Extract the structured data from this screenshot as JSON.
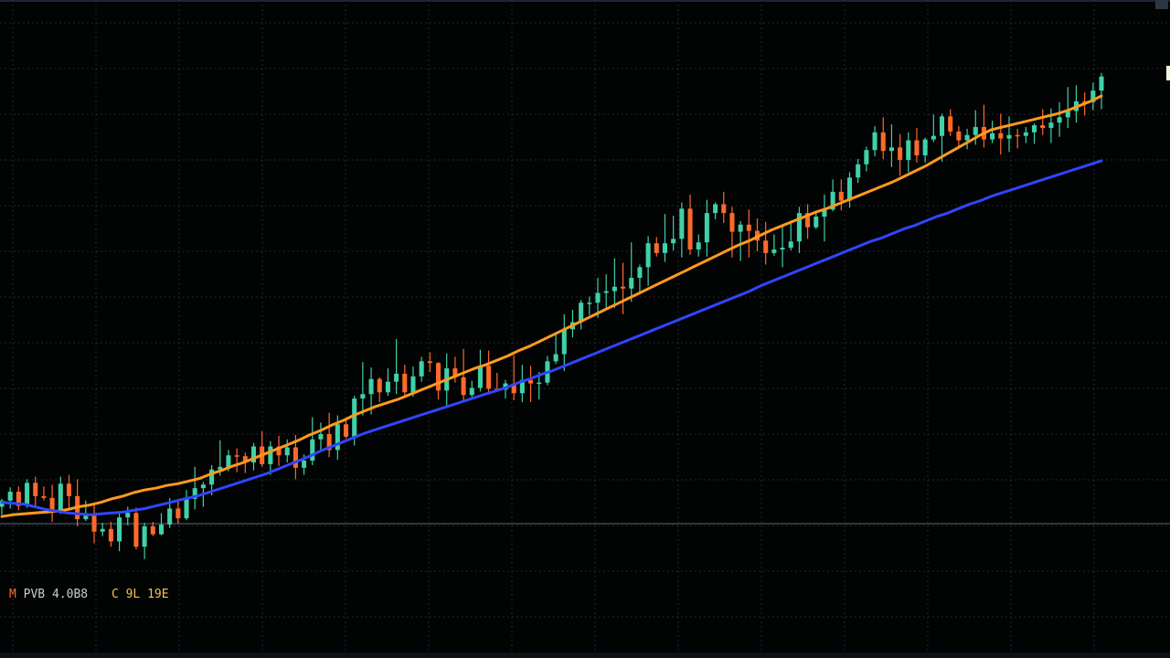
{
  "chart_data": {
    "type": "candlestick",
    "background": "#020303",
    "grid": true,
    "grid_color": "#1f2a33",
    "baseline_color": "#5a6670",
    "up_color": "#3fd1a8",
    "down_color": "#ff6a2a",
    "candles": [
      [
        3.03,
        3.12,
        2.94,
        3.1
      ],
      [
        3.1,
        3.25,
        3.01,
        3.2
      ],
      [
        3.2,
        3.26,
        2.99,
        3.04
      ],
      [
        3.04,
        3.34,
        3.02,
        3.3
      ],
      [
        3.3,
        3.37,
        3.04,
        3.15
      ],
      [
        3.15,
        3.26,
        3.1,
        3.13
      ],
      [
        3.13,
        3.28,
        2.86,
        2.99
      ],
      [
        2.99,
        3.37,
        2.95,
        3.29
      ],
      [
        3.29,
        3.39,
        3.0,
        3.15
      ],
      [
        3.15,
        3.34,
        2.81,
        2.89
      ],
      [
        2.89,
        3.1,
        2.87,
        2.93
      ],
      [
        2.93,
        3.05,
        2.62,
        2.75
      ],
      [
        2.75,
        2.85,
        2.7,
        2.78
      ],
      [
        2.78,
        2.86,
        2.58,
        2.64
      ],
      [
        2.64,
        2.98,
        2.53,
        2.91
      ],
      [
        2.91,
        3.03,
        2.82,
        2.96
      ],
      [
        2.96,
        3.02,
        2.55,
        2.58
      ],
      [
        2.58,
        2.85,
        2.44,
        2.81
      ],
      [
        2.81,
        2.86,
        2.7,
        2.72
      ],
      [
        2.72,
        2.96,
        2.71,
        2.83
      ],
      [
        2.83,
        3.13,
        2.79,
        3.01
      ],
      [
        3.01,
        3.12,
        2.84,
        2.9
      ],
      [
        2.9,
        3.22,
        2.88,
        3.12
      ],
      [
        3.12,
        3.48,
        3.0,
        3.24
      ],
      [
        3.24,
        3.31,
        3.03,
        3.28
      ],
      [
        3.28,
        3.5,
        3.16,
        3.45
      ],
      [
        3.45,
        3.78,
        3.38,
        3.48
      ],
      [
        3.48,
        3.67,
        3.43,
        3.61
      ],
      [
        3.61,
        3.69,
        3.42,
        3.6
      ],
      [
        3.6,
        3.64,
        3.41,
        3.53
      ],
      [
        3.53,
        3.75,
        3.44,
        3.71
      ],
      [
        3.71,
        3.88,
        3.48,
        3.51
      ],
      [
        3.51,
        3.77,
        3.39,
        3.71
      ],
      [
        3.71,
        3.83,
        3.49,
        3.61
      ],
      [
        3.61,
        3.79,
        3.53,
        3.7
      ],
      [
        3.7,
        3.84,
        3.34,
        3.47
      ],
      [
        3.47,
        3.62,
        3.39,
        3.55
      ],
      [
        3.55,
        4.04,
        3.5,
        3.79
      ],
      [
        3.79,
        3.98,
        3.66,
        3.85
      ],
      [
        3.85,
        4.09,
        3.59,
        3.67
      ],
      [
        3.67,
        4.06,
        3.56,
        3.96
      ],
      [
        3.96,
        4.03,
        3.8,
        3.82
      ],
      [
        3.82,
        4.28,
        3.72,
        4.25
      ],
      [
        4.25,
        4.66,
        4.06,
        4.3
      ],
      [
        4.3,
        4.6,
        4.07,
        4.47
      ],
      [
        4.47,
        4.49,
        4.21,
        4.32
      ],
      [
        4.32,
        4.59,
        4.28,
        4.44
      ],
      [
        4.44,
        4.92,
        4.3,
        4.53
      ],
      [
        4.53,
        4.63,
        4.28,
        4.32
      ],
      [
        4.32,
        4.61,
        4.27,
        4.5
      ],
      [
        4.5,
        4.72,
        4.44,
        4.67
      ],
      [
        4.67,
        4.77,
        4.55,
        4.65
      ],
      [
        4.65,
        4.66,
        4.24,
        4.34
      ],
      [
        4.34,
        4.76,
        4.17,
        4.59
      ],
      [
        4.59,
        4.72,
        4.43,
        4.49
      ],
      [
        4.49,
        4.81,
        4.23,
        4.29
      ],
      [
        4.29,
        4.45,
        4.26,
        4.37
      ],
      [
        4.37,
        4.8,
        4.33,
        4.62
      ],
      [
        4.62,
        4.79,
        4.32,
        4.36
      ],
      [
        4.36,
        4.54,
        4.34,
        4.35
      ],
      [
        4.35,
        4.46,
        4.25,
        4.42
      ],
      [
        4.42,
        4.74,
        4.23,
        4.31
      ],
      [
        4.31,
        4.63,
        4.21,
        4.46
      ],
      [
        4.46,
        4.62,
        4.21,
        4.42
      ],
      [
        4.42,
        4.55,
        4.24,
        4.43
      ],
      [
        4.43,
        4.73,
        4.4,
        4.67
      ],
      [
        4.67,
        4.98,
        4.64,
        4.75
      ],
      [
        4.75,
        5.2,
        4.56,
        5.03
      ],
      [
        5.03,
        5.25,
        4.94,
        5.11
      ],
      [
        5.11,
        5.36,
        5.03,
        5.33
      ],
      [
        5.33,
        5.4,
        5.19,
        5.33
      ],
      [
        5.33,
        5.61,
        5.16,
        5.44
      ],
      [
        5.44,
        5.65,
        5.26,
        5.46
      ],
      [
        5.46,
        5.83,
        5.27,
        5.51
      ],
      [
        5.51,
        5.78,
        5.2,
        5.49
      ],
      [
        5.49,
        6.01,
        5.34,
        5.61
      ],
      [
        5.61,
        5.76,
        5.43,
        5.73
      ],
      [
        5.73,
        6.08,
        5.52,
        6.0
      ],
      [
        6.0,
        6.07,
        5.85,
        5.89
      ],
      [
        5.89,
        6.33,
        5.79,
        6.0
      ],
      [
        6.0,
        6.31,
        5.92,
        6.05
      ],
      [
        6.05,
        6.46,
        5.84,
        6.39
      ],
      [
        6.39,
        6.55,
        5.87,
        5.93
      ],
      [
        5.93,
        6.1,
        5.85,
        6.01
      ],
      [
        6.01,
        6.49,
        5.85,
        6.34
      ],
      [
        6.34,
        6.46,
        6.27,
        6.44
      ],
      [
        6.44,
        6.58,
        6.23,
        6.34
      ],
      [
        6.34,
        6.41,
        5.84,
        6.13
      ],
      [
        6.13,
        6.25,
        5.8,
        6.21
      ],
      [
        6.21,
        6.38,
        5.84,
        6.14
      ],
      [
        6.14,
        6.28,
        5.91,
        6.03
      ],
      [
        6.03,
        6.24,
        5.76,
        5.89
      ],
      [
        5.89,
        6.1,
        5.86,
        5.93
      ],
      [
        5.93,
        6.19,
        5.73,
        5.95
      ],
      [
        5.95,
        6.24,
        5.92,
        6.02
      ],
      [
        6.02,
        6.41,
        5.89,
        6.34
      ],
      [
        6.34,
        6.44,
        6.05,
        6.18
      ],
      [
        6.18,
        6.36,
        6.16,
        6.3
      ],
      [
        6.3,
        6.55,
        6.02,
        6.38
      ],
      [
        6.38,
        6.72,
        6.36,
        6.58
      ],
      [
        6.58,
        6.72,
        6.37,
        6.48
      ],
      [
        6.48,
        6.8,
        6.4,
        6.74
      ],
      [
        6.74,
        6.95,
        6.68,
        6.89
      ],
      [
        6.89,
        7.09,
        6.81,
        7.05
      ],
      [
        7.05,
        7.32,
        6.98,
        7.25
      ],
      [
        7.25,
        7.42,
        6.95,
        7.04
      ],
      [
        7.04,
        7.34,
        6.86,
        7.08
      ],
      [
        7.08,
        7.23,
        6.76,
        6.94
      ],
      [
        6.94,
        7.25,
        6.8,
        7.16
      ],
      [
        7.16,
        7.3,
        6.91,
        6.99
      ],
      [
        6.99,
        7.19,
        6.91,
        7.17
      ],
      [
        7.17,
        7.45,
        7.14,
        7.21
      ],
      [
        7.21,
        7.46,
        6.92,
        7.43
      ],
      [
        7.43,
        7.51,
        7.21,
        7.26
      ],
      [
        7.26,
        7.32,
        7.08,
        7.16
      ],
      [
        7.16,
        7.29,
        7.06,
        7.22
      ],
      [
        7.22,
        7.5,
        7.11,
        7.31
      ],
      [
        7.31,
        7.56,
        7.08,
        7.17
      ],
      [
        7.17,
        7.38,
        7.13,
        7.24
      ],
      [
        7.24,
        7.46,
        7.0,
        7.18
      ],
      [
        7.18,
        7.43,
        7.03,
        7.22
      ],
      [
        7.22,
        7.29,
        7.07,
        7.21
      ],
      [
        7.21,
        7.31,
        7.13,
        7.25
      ],
      [
        7.25,
        7.35,
        7.12,
        7.33
      ],
      [
        7.33,
        7.51,
        7.22,
        7.3
      ],
      [
        7.3,
        7.52,
        7.13,
        7.36
      ],
      [
        7.36,
        7.59,
        7.2,
        7.42
      ],
      [
        7.42,
        7.76,
        7.3,
        7.49
      ],
      [
        7.49,
        7.78,
        7.36,
        7.6
      ],
      [
        7.6,
        7.7,
        7.44,
        7.59
      ],
      [
        7.59,
        7.81,
        7.5,
        7.72
      ],
      [
        7.72,
        7.92,
        7.51,
        7.88
      ]
    ],
    "series": [
      {
        "color": "#ff9a1f",
        "values": [
          2.92,
          2.94,
          2.95,
          2.96,
          2.97,
          2.98,
          3.0,
          3.03,
          3.05,
          3.08,
          3.12,
          3.15,
          3.19,
          3.22,
          3.24,
          3.27,
          3.29,
          3.32,
          3.35,
          3.4,
          3.44,
          3.49,
          3.53,
          3.58,
          3.63,
          3.68,
          3.73,
          3.78,
          3.84,
          3.89,
          3.95,
          4.0,
          4.06,
          4.11,
          4.16,
          4.2,
          4.24,
          4.29,
          4.34,
          4.39,
          4.44,
          4.49,
          4.54,
          4.59,
          4.63,
          4.68,
          4.73,
          4.79,
          4.84,
          4.9,
          4.96,
          5.02,
          5.08,
          5.14,
          5.2,
          5.26,
          5.32,
          5.38,
          5.44,
          5.5,
          5.56,
          5.62,
          5.68,
          5.74,
          5.8,
          5.86,
          5.92,
          5.98,
          6.03,
          6.09,
          6.15,
          6.2,
          6.25,
          6.3,
          6.35,
          6.39,
          6.44,
          6.49,
          6.54,
          6.59,
          6.64,
          6.69,
          6.75,
          6.81,
          6.87,
          6.94,
          7.01,
          7.08,
          7.15,
          7.22,
          7.28,
          7.31,
          7.34,
          7.37,
          7.4,
          7.43,
          7.46,
          7.5,
          7.55,
          7.6,
          7.66
        ]
      },
      {
        "color": "#2f46ff",
        "values": [
          3.08,
          3.07,
          3.06,
          3.03,
          3.0,
          2.98,
          2.96,
          2.95,
          2.94,
          2.95,
          2.96,
          2.97,
          2.99,
          3.01,
          3.04,
          3.07,
          3.1,
          3.13,
          3.16,
          3.2,
          3.24,
          3.28,
          3.32,
          3.36,
          3.4,
          3.45,
          3.5,
          3.55,
          3.6,
          3.66,
          3.71,
          3.76,
          3.81,
          3.86,
          3.9,
          3.94,
          3.98,
          4.02,
          4.06,
          4.1,
          4.14,
          4.18,
          4.22,
          4.26,
          4.3,
          4.34,
          4.38,
          4.43,
          4.47,
          4.52,
          4.56,
          4.61,
          4.66,
          4.71,
          4.76,
          4.81,
          4.86,
          4.91,
          4.96,
          5.01,
          5.06,
          5.11,
          5.16,
          5.21,
          5.26,
          5.31,
          5.36,
          5.41,
          5.46,
          5.52,
          5.57,
          5.62,
          5.67,
          5.72,
          5.77,
          5.82,
          5.87,
          5.92,
          5.97,
          6.02,
          6.06,
          6.11,
          6.16,
          6.2,
          6.25,
          6.3,
          6.34,
          6.39,
          6.44,
          6.48,
          6.53,
          6.57,
          6.61,
          6.65,
          6.69,
          6.73,
          6.77,
          6.81,
          6.85,
          6.89,
          6.93
        ]
      }
    ],
    "legend_placement": "bottom-left"
  },
  "legend": {
    "item1_prefix": "M",
    "item1_text": " PVB 4.0B8",
    "item2_text": "C 9L 19E"
  }
}
